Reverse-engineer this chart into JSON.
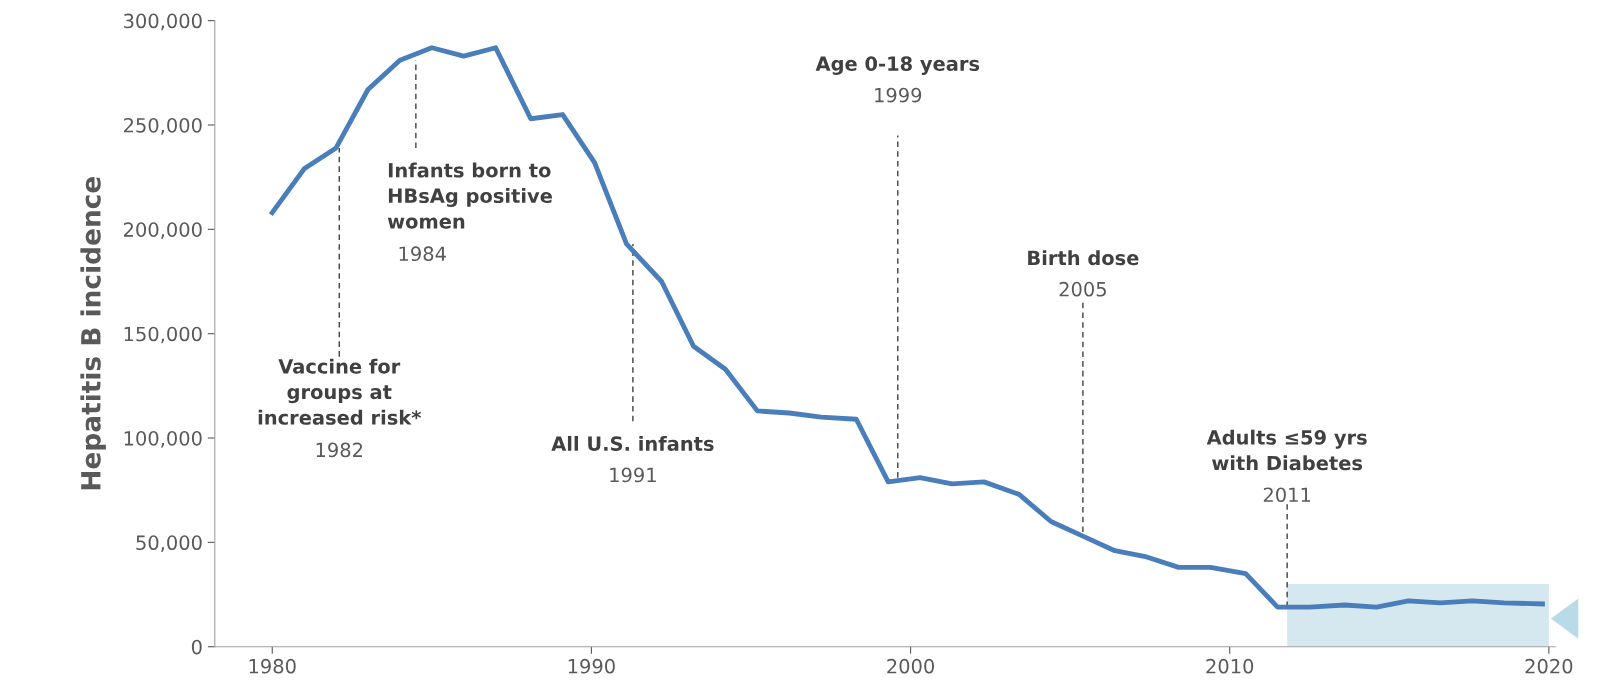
{
  "chart_data": {
    "type": "line",
    "ylabel": "Hepatitis B incidence",
    "x": [
      1980,
      1981,
      1982,
      1983,
      1984,
      1985,
      1986,
      1987,
      1988.1,
      1989.1,
      1990.1,
      1991.1,
      1992.2,
      1993.2,
      1994.2,
      1995.2,
      1996.2,
      1997.2,
      1998.3,
      1999.3,
      2000.3,
      2001.3,
      2002.3,
      2003.4,
      2004.4,
      2005.4,
      2006.4,
      2007.4,
      2008.4,
      2009.4,
      2010.5,
      2011.5,
      2012.5,
      2013.6,
      2014.6,
      2015.6,
      2016.6,
      2017.6,
      2018.6,
      2019.8
    ],
    "series": [
      {
        "color": "#4a7ebb",
        "values": [
          208000,
          229000,
          239000,
          267000,
          281000,
          287000,
          283000,
          287000,
          253000,
          255000,
          232000,
          193000,
          175000,
          144000,
          133000,
          113000,
          112000,
          110000,
          109000,
          79000,
          81000,
          78000,
          79000,
          73000,
          60000,
          53000,
          46000,
          43000,
          38000,
          38000,
          35000,
          19000,
          19000,
          20000,
          19000,
          22000,
          21000,
          22000,
          21000,
          20500
        ]
      }
    ],
    "xlim": [
      1978.2,
      2020.2
    ],
    "ylim": [
      0,
      300000
    ],
    "xticks": [
      1980,
      1990,
      2000,
      2010,
      2020
    ],
    "yticks": [
      0,
      {
        "value": 50000,
        "label": "50,000"
      },
      {
        "value": 100000,
        "label": "100,000"
      },
      {
        "value": 150000,
        "label": "150,000"
      },
      {
        "value": 200000,
        "label": "200,000"
      },
      {
        "value": 250000,
        "label": "250,000"
      },
      {
        "value": 300000,
        "label": "300,000"
      }
    ],
    "ref_lines": [
      {
        "axis": "x",
        "value": 1982.1,
        "label": "Vaccine for\ngroups at\nincreased risk*\n1982",
        "line_style": "dashed",
        "color": "#404040"
      },
      {
        "axis": "x",
        "value": 1984.5,
        "label": "Infants born to\nHBsAg positive\nwomen\n1984",
        "line_style": "dashed",
        "color": "#404040"
      },
      {
        "axis": "x",
        "value": 1991.3,
        "label": "All U.S. infants\n1991",
        "line_style": "dashed",
        "color": "#404040"
      },
      {
        "axis": "x",
        "value": 1999.6,
        "label": "Age 0-18 years\n1999",
        "line_style": "dashed",
        "color": "#404040"
      },
      {
        "axis": "x",
        "value": 2005.4,
        "label": "Birth dose\n2005",
        "line_style": "dashed",
        "color": "#404040"
      },
      {
        "axis": "x",
        "value": 2011.8,
        "label": "Adults ≤59 yrs\nwith Diabetes\n2011",
        "line_style": "dashed",
        "color": "#404040"
      }
    ],
    "bands": [
      {
        "axis": "x",
        "from": 2011.8,
        "to": 2020,
        "color": "#d5e8f0"
      }
    ],
    "grid": false,
    "marker": "none",
    "line_style": "solid"
  }
}
